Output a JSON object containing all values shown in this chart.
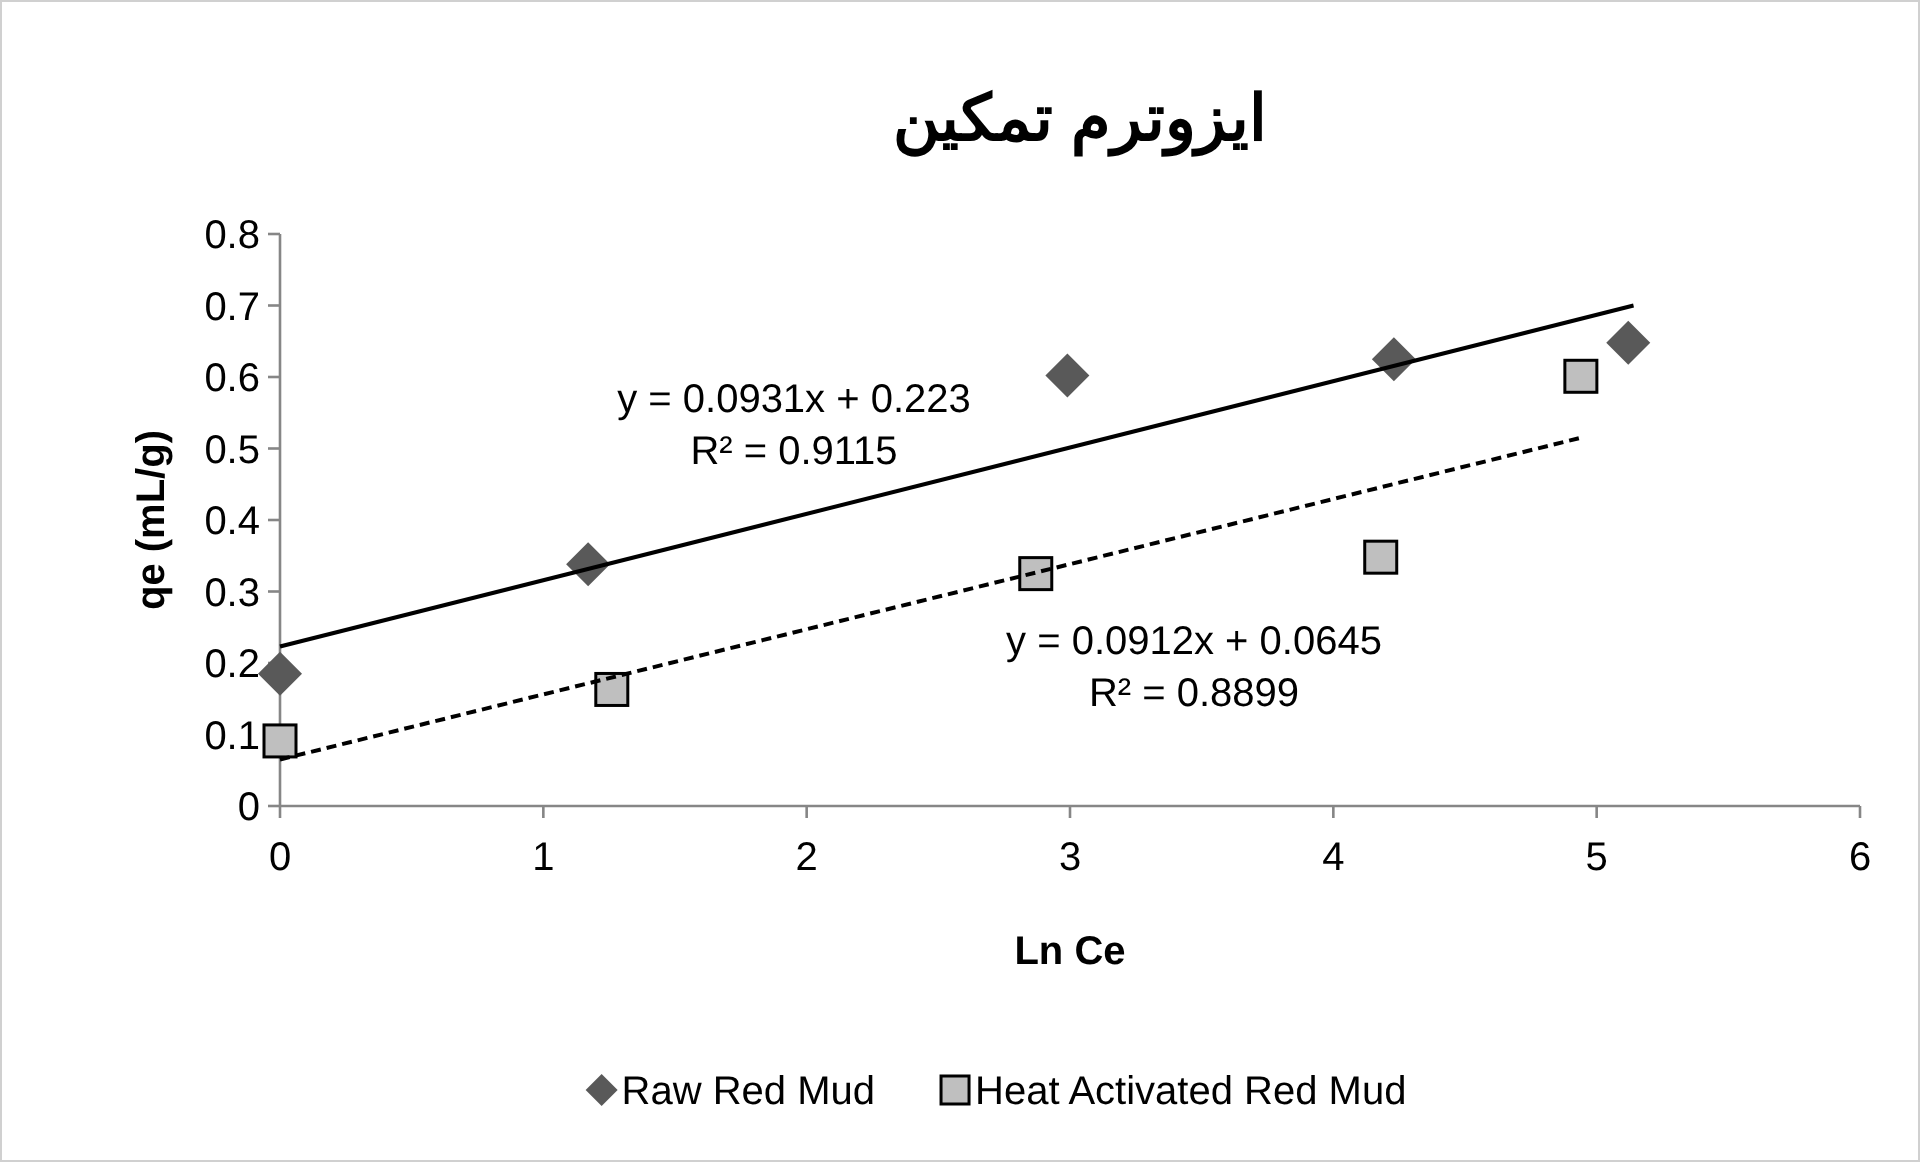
{
  "chart_data": {
    "type": "scatter",
    "title": "ایزوترم تمکین",
    "xlabel": "Ln Ce",
    "ylabel": "qe (mL/g)",
    "xlim": [
      0,
      6
    ],
    "xticks": [
      0,
      1,
      2,
      3,
      4,
      5,
      6
    ],
    "ylim": [
      0,
      0.8
    ],
    "yticks": [
      0,
      0.1,
      0.2,
      0.3,
      0.4,
      0.5,
      0.6,
      0.7,
      0.8
    ],
    "grid": false,
    "legend": "bottom",
    "series": [
      {
        "name": "Raw Red Mud",
        "marker": "diamond",
        "color": "#595959",
        "x": [
          0,
          1.17,
          2.99,
          4.23,
          5.12
        ],
        "values": [
          0.185,
          0.338,
          0.602,
          0.625,
          0.648
        ]
      },
      {
        "name": "Heat Activated Red Mud",
        "marker": "square",
        "color": "#bfbfbf",
        "x": [
          0,
          1.26,
          2.87,
          4.18,
          4.94
        ],
        "values": [
          0.091,
          0.163,
          0.325,
          0.348,
          0.601
        ]
      },
      {
        "type": "line",
        "marker": "none",
        "line_style": "solid",
        "color": "#000000",
        "x": [
          0,
          5.14
        ],
        "values": [
          0.223,
          0.7
        ]
      },
      {
        "type": "line",
        "marker": "none",
        "line_style": "dashed",
        "color": "#000000",
        "x": [
          0,
          4.94
        ],
        "values": [
          0.065,
          0.515
        ]
      }
    ],
    "annotations": [
      "y = 0.0931x + 0.223\nR² = 0.9115",
      "y = 0.0912x + 0.0645\nR² = 0.8899"
    ]
  }
}
